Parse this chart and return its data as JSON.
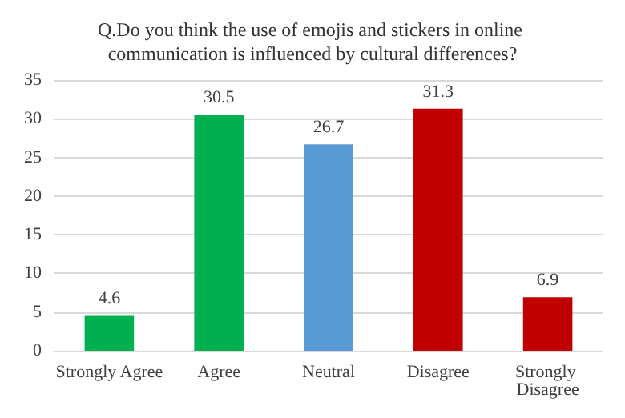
{
  "chart_data": {
    "type": "bar",
    "title": "Q.Do you think the use of emojis and stickers in online communication is influenced by cultural differences?",
    "categories": [
      "Strongly Agree",
      "Agree",
      "Neutral",
      "Disagree",
      "Strongly Disagree"
    ],
    "values": [
      4.6,
      30.5,
      26.7,
      31.3,
      6.9
    ],
    "colors": [
      "#00b050",
      "#00b050",
      "#5b9bd5",
      "#c00000",
      "#c00000"
    ],
    "ylim": [
      0,
      35
    ],
    "yticks": [
      0,
      5,
      10,
      15,
      20,
      25,
      30,
      35
    ],
    "grid": "y",
    "data_labels": true
  }
}
